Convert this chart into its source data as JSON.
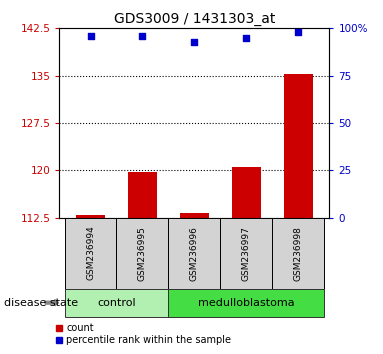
{
  "title": "GDS3009 / 1431303_at",
  "samples": [
    "GSM236994",
    "GSM236995",
    "GSM236996",
    "GSM236997",
    "GSM236998"
  ],
  "count_values": [
    113.0,
    119.8,
    113.2,
    120.5,
    135.2
  ],
  "percentile_values": [
    96,
    96,
    93,
    95,
    98
  ],
  "ylim_left": [
    112.5,
    142.5
  ],
  "ylim_right": [
    0,
    100
  ],
  "yticks_left": [
    112.5,
    120,
    127.5,
    135,
    142.5
  ],
  "yticks_right": [
    0,
    25,
    50,
    75,
    100
  ],
  "ytick_labels_left": [
    "112.5",
    "120",
    "127.5",
    "135",
    "142.5"
  ],
  "ytick_labels_right": [
    "0",
    "25",
    "50",
    "75",
    "100%"
  ],
  "bar_color": "#cc0000",
  "scatter_color": "#0000cc",
  "dotted_lines": [
    120,
    127.5,
    135
  ],
  "categories": [
    {
      "label": "control",
      "indices": [
        0,
        1
      ],
      "color": "#b2f0b2"
    },
    {
      "label": "medulloblastoma",
      "indices": [
        2,
        3,
        4
      ],
      "color": "#44dd44"
    }
  ],
  "category_label": "disease state",
  "legend_items": [
    {
      "label": "count",
      "color": "#cc0000"
    },
    {
      "label": "percentile rank within the sample",
      "color": "#0000cc"
    }
  ],
  "bar_width": 0.55,
  "bg_color": "#ffffff",
  "plot_bg": "#ffffff",
  "sample_box_color": "#d3d3d3",
  "sample_box_edge": "#000000"
}
